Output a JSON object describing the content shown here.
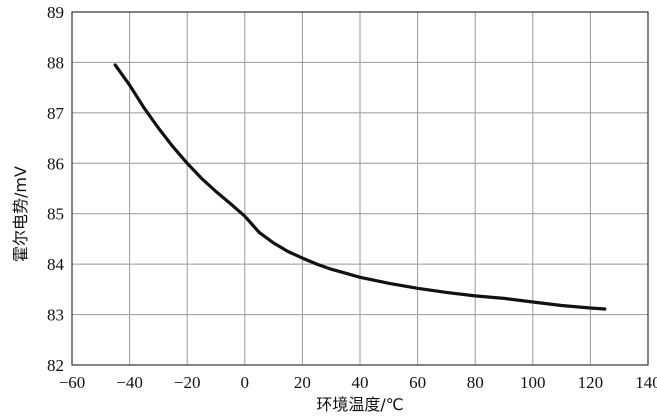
{
  "chart_data": {
    "type": "line",
    "title": "",
    "xlabel": "环境温度/℃",
    "ylabel": "霍尔电势/mV",
    "xlim": [
      -60,
      140
    ],
    "ylim": [
      82,
      89
    ],
    "grid": true,
    "xticks": [
      -60,
      -40,
      -20,
      0,
      20,
      40,
      60,
      80,
      100,
      120,
      140
    ],
    "yticks": [
      82,
      83,
      84,
      85,
      86,
      87,
      88,
      89
    ],
    "xtick_labels": [
      "−60",
      "−40",
      "−20",
      "0",
      "20",
      "40",
      "60",
      "80",
      "100",
      "120",
      "140"
    ],
    "ytick_labels": [
      "82",
      "83",
      "84",
      "85",
      "86",
      "87",
      "88",
      "89"
    ],
    "series": [
      {
        "x": [
          -45,
          -40,
          -35,
          -30,
          -25,
          -20,
          -15,
          -10,
          -5,
          0,
          5,
          10,
          15,
          20,
          25,
          30,
          35,
          40,
          50,
          60,
          70,
          80,
          90,
          100,
          110,
          120,
          125
        ],
        "y": [
          87.95,
          87.55,
          87.1,
          86.7,
          86.33,
          86.0,
          85.7,
          85.44,
          85.2,
          84.95,
          84.63,
          84.42,
          84.25,
          84.12,
          84.0,
          83.9,
          83.82,
          83.74,
          83.62,
          83.52,
          83.44,
          83.37,
          83.32,
          83.25,
          83.18,
          83.13,
          83.11
        ]
      }
    ],
    "line_color": "#111111"
  }
}
